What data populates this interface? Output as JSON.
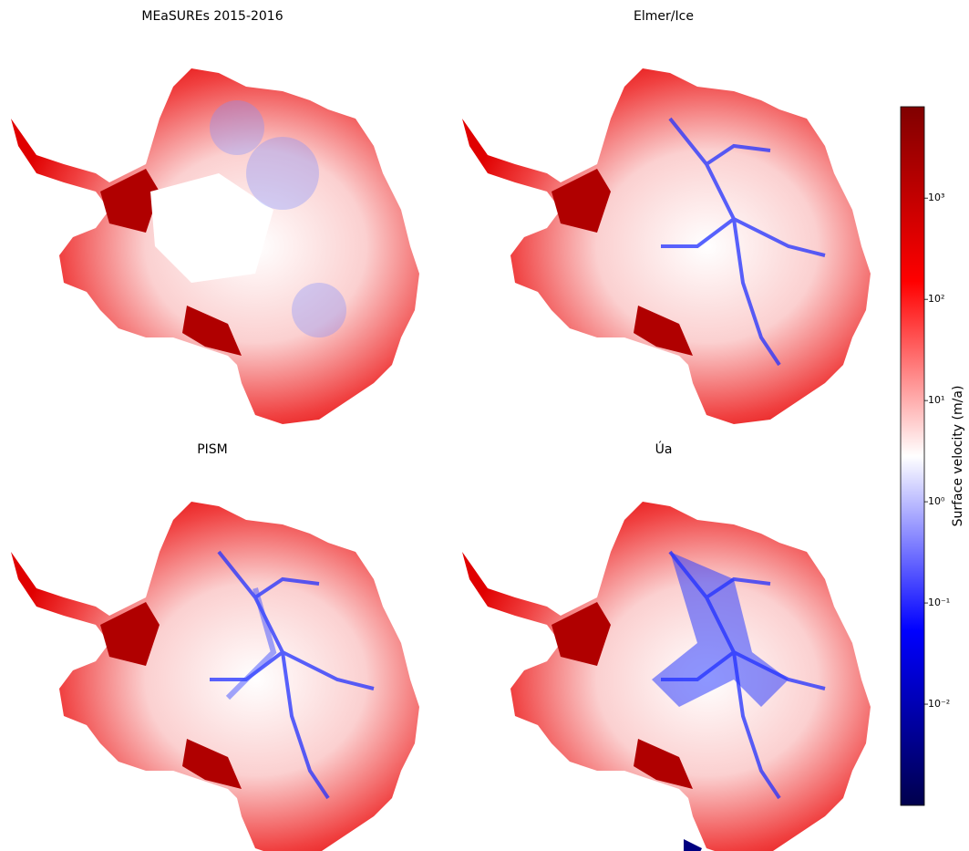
{
  "panels": [
    {
      "title": "MEaSUREs 2015-2016"
    },
    {
      "title": "Elmer/Ice"
    },
    {
      "title": "PISM"
    },
    {
      "title": "Úa"
    }
  ],
  "colorbar": {
    "label": "Surface velocity (m/a)",
    "scale": "log",
    "lim": [
      0.001,
      8000
    ],
    "ticks": [
      {
        "value": 0.01,
        "label": "10⁻²"
      },
      {
        "value": 0.1,
        "label": "10⁻¹"
      },
      {
        "value": 1,
        "label": "10⁰"
      },
      {
        "value": 10,
        "label": "10¹"
      },
      {
        "value": 100,
        "label": "10²"
      },
      {
        "value": 1000,
        "label": "10³"
      }
    ]
  }
}
